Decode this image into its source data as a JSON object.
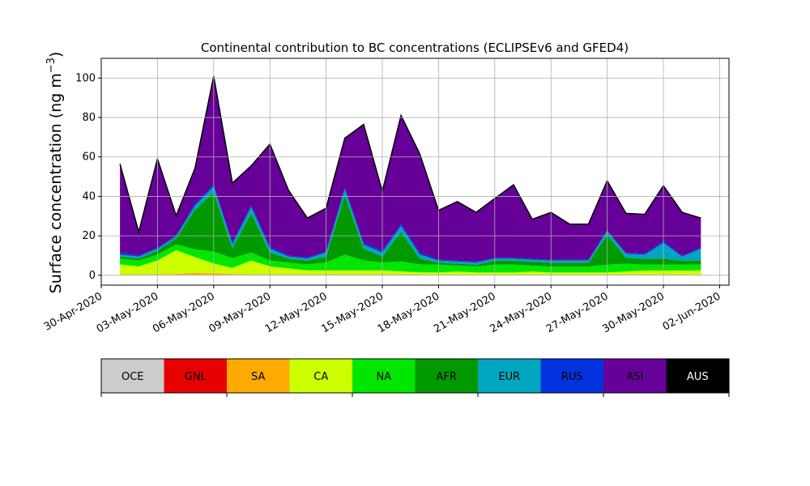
{
  "chart_data": {
    "type": "area",
    "stacked": true,
    "title": "Continental contribution to BC concentrations (ECLIPSEv6 and GFED4)",
    "ylabel_main": "Surface concentration (ng m",
    "ylabel_sup": "−3",
    "ylabel_close": ")",
    "xlabel": "",
    "xlim_days": [
      -1,
      32.5
    ],
    "ylim": [
      -5,
      110
    ],
    "yticks": [
      0,
      20,
      40,
      60,
      80,
      100
    ],
    "ytick_labels": [
      "0",
      "20",
      "40",
      "60",
      "80",
      "100"
    ],
    "xticks": [
      "30-Apr-2020",
      "03-May-2020",
      "06-May-2020",
      "09-May-2020",
      "12-May-2020",
      "15-May-2020",
      "18-May-2020",
      "21-May-2020",
      "24-May-2020",
      "27-May-2020",
      "30-May-2020",
      "02-Jun-2020"
    ],
    "grid": true,
    "x": [
      "2020-05-01",
      "2020-05-02",
      "2020-05-03",
      "2020-05-04",
      "2020-05-05",
      "2020-05-06",
      "2020-05-07",
      "2020-05-08",
      "2020-05-09",
      "2020-05-10",
      "2020-05-11",
      "2020-05-12",
      "2020-05-13",
      "2020-05-14",
      "2020-05-15",
      "2020-05-16",
      "2020-05-17",
      "2020-05-18",
      "2020-05-19",
      "2020-05-20",
      "2020-05-21",
      "2020-05-22",
      "2020-05-23",
      "2020-05-24",
      "2020-05-25",
      "2020-05-26",
      "2020-05-27",
      "2020-05-28",
      "2020-05-29",
      "2020-05-30",
      "2020-05-31",
      "2020-06-01"
    ],
    "series": [
      {
        "name": "OCE",
        "color": "#cccccc",
        "values": [
          0.2,
          0.2,
          0.2,
          0.2,
          0.2,
          0.2,
          0.2,
          0.2,
          0.2,
          0.2,
          0.2,
          0.2,
          0.2,
          0.2,
          0.2,
          0.2,
          0.2,
          0.2,
          0.2,
          0.2,
          0.2,
          0.2,
          0.2,
          0.2,
          0.2,
          0.2,
          0.2,
          0.2,
          0.2,
          0.2,
          0.2,
          0.3
        ]
      },
      {
        "name": "GNL",
        "color": "#e60000",
        "values": [
          0,
          0,
          0,
          0,
          0,
          0,
          0,
          0,
          0,
          0,
          0,
          0,
          0,
          0,
          0,
          0,
          0,
          0,
          0,
          0,
          0,
          0,
          0,
          0,
          0,
          0,
          0,
          0,
          0,
          0,
          0,
          0
        ]
      },
      {
        "name": "SA",
        "color": "#ffaa00",
        "values": [
          0.3,
          0.3,
          0.3,
          0.5,
          1.0,
          0.8,
          0.5,
          0.3,
          0.3,
          0.3,
          0.3,
          0.3,
          0.3,
          0.3,
          0.3,
          0.3,
          0.3,
          0.2,
          0.2,
          0.2,
          0.2,
          0.2,
          0.2,
          0.2,
          0.2,
          0.2,
          0.2,
          0.2,
          0.2,
          0.2,
          0.2,
          0.2
        ]
      },
      {
        "name": "CA",
        "color": "#ccff00",
        "values": [
          5,
          4,
          7,
          12,
          8,
          5,
          3,
          7,
          4,
          3,
          2,
          2,
          2,
          2,
          2,
          1.5,
          1,
          1,
          1.5,
          1,
          1,
          1,
          1.5,
          1,
          1,
          1,
          1,
          1.5,
          2,
          2,
          2,
          2
        ]
      },
      {
        "name": "NA",
        "color": "#00e600",
        "values": [
          3,
          3,
          3,
          3,
          4,
          6,
          5,
          4,
          3,
          3,
          3,
          4,
          8,
          5,
          4,
          5,
          4,
          4,
          3,
          3,
          4,
          4,
          3,
          3,
          3,
          3,
          4,
          4,
          3,
          3,
          3,
          3
        ]
      },
      {
        "name": "AFR",
        "color": "#009900",
        "values": [
          1,
          1,
          2,
          3,
          20,
          30,
          5,
          20,
          4,
          2,
          2,
          3,
          30,
          6,
          3,
          15,
          3,
          1,
          1,
          1,
          2,
          2,
          2,
          2,
          2,
          2,
          15,
          3,
          3,
          3,
          2,
          2
        ]
      },
      {
        "name": "EUR",
        "color": "#00a6bf",
        "values": [
          1,
          1,
          1,
          1,
          2,
          3,
          2,
          3,
          2,
          1,
          1,
          2,
          3,
          2,
          2,
          3,
          2,
          1,
          1,
          1,
          1,
          1,
          1,
          1,
          1,
          1,
          2,
          2,
          2,
          8,
          2,
          6
        ]
      },
      {
        "name": "RUS",
        "color": "#0033dd",
        "values": [
          1,
          0.5,
          0.5,
          0.5,
          1,
          1,
          1,
          1,
          1,
          0.5,
          0.5,
          0.5,
          1,
          1,
          1,
          1,
          1,
          0.5,
          0.5,
          0.5,
          0.5,
          0.5,
          0.5,
          0.5,
          0.5,
          0.5,
          0.5,
          0.5,
          0.5,
          1,
          0.5,
          0.5
        ]
      },
      {
        "name": "ASI",
        "color": "#660099",
        "values": [
          45,
          12,
          45,
          10,
          18,
          55,
          30,
          20,
          52,
          33,
          20,
          22,
          25,
          60,
          30,
          55,
          50,
          25,
          30,
          25,
          30,
          37,
          20,
          24,
          18,
          18,
          25,
          20,
          20,
          28,
          22,
          15
        ]
      },
      {
        "name": "AUS",
        "color": "#000000",
        "values": [
          0,
          0,
          0,
          0,
          0,
          0,
          0,
          0,
          0,
          0,
          0,
          0,
          0,
          0,
          0,
          0,
          0,
          0,
          0,
          0,
          0,
          0,
          0,
          0,
          0,
          0,
          0,
          0,
          0,
          0,
          0,
          0
        ]
      }
    ]
  },
  "legend_bar": {
    "labels": [
      "OCE",
      "GNL",
      "SA",
      "CA",
      "NA",
      "AFR",
      "EUR",
      "RUS",
      "ASI",
      "AUS"
    ]
  }
}
